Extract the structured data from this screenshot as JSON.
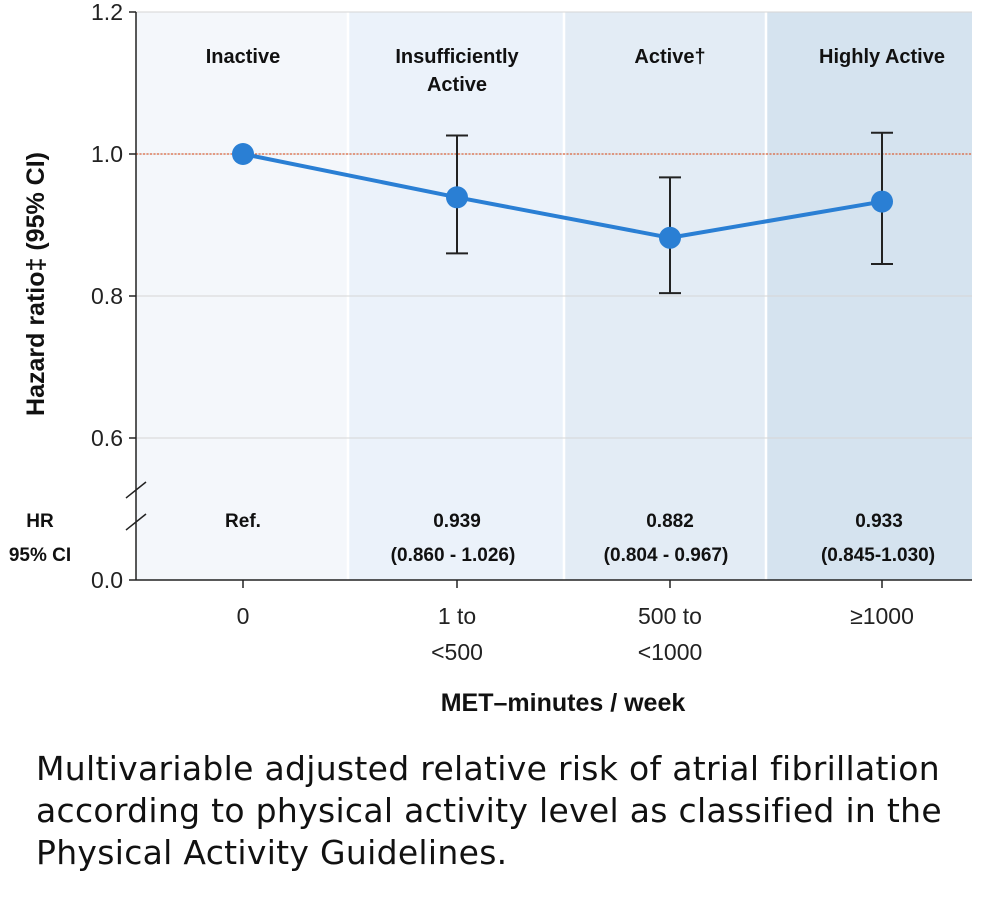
{
  "chart_data": {
    "type": "line",
    "xlabel": "MET–minutes / week",
    "ylabel": "Hazard ratio‡ (95% CI)",
    "ylim": [
      0.0,
      1.2
    ],
    "y_break": [
      0.0,
      0.6
    ],
    "yticks": [
      "0.0",
      "0.6",
      "0.8",
      "1.0",
      "1.2"
    ],
    "ytick_values": [
      0.0,
      0.6,
      0.8,
      1.0,
      1.2
    ],
    "categories": [
      "0",
      "1 to\n<500",
      "500 to\n<1000",
      "≥1000"
    ],
    "zones": [
      "Inactive",
      "Insufficiently\nActive",
      "Active†",
      "Highly Active"
    ],
    "zone_colors": [
      "#f4f7fb",
      "#ebf2fa",
      "#e3ecf5",
      "#d5e3ef"
    ],
    "reference_line": 1.0,
    "reference_color": "#d9623a",
    "series": [
      {
        "color": "#2a7fd4",
        "values": [
          1.0,
          0.939,
          0.882,
          0.933
        ],
        "ci_low": [
          null,
          0.86,
          0.804,
          0.845
        ],
        "ci_high": [
          null,
          1.026,
          0.967,
          1.03
        ]
      }
    ],
    "table": {
      "row_labels": [
        "HR",
        "95% CI"
      ],
      "hr": [
        "Ref.",
        "0.939",
        "0.882",
        "0.933"
      ],
      "ci": [
        "",
        "(0.860 - 1.026)",
        "(0.804 - 0.967)",
        "(0.845-1.030)"
      ]
    }
  },
  "caption": "Multivariable adjusted relative risk of atrial fibrillation according to physical activity level as classified in the Physical Activity Guidelines."
}
